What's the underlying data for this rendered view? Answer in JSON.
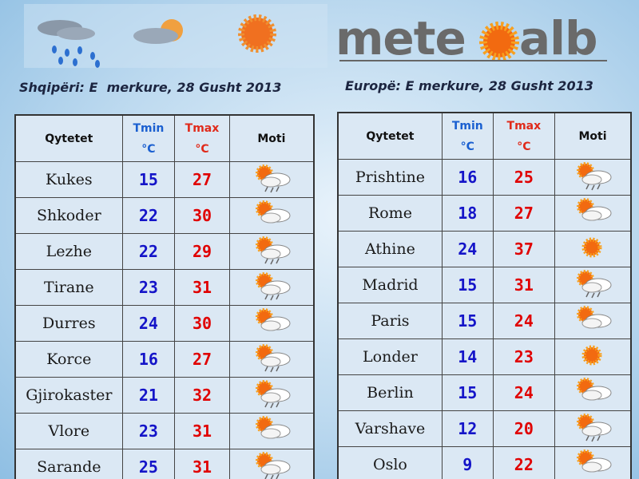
{
  "logo": {
    "left": "mete",
    "right": "alb"
  },
  "left": {
    "title": "Shqipëri: E  merkure, 28 Gusht 2013",
    "header": {
      "city": "Qytetet",
      "tmin": "Tmin",
      "tmax": "Tmax",
      "unit": "°C",
      "moti": "Moti"
    },
    "rows": [
      {
        "city": "Kukes",
        "tmin": 15,
        "tmax": 27,
        "icon": "rain"
      },
      {
        "city": "Shkoder",
        "tmin": 22,
        "tmax": 30,
        "icon": "cloud"
      },
      {
        "city": "Lezhe",
        "tmin": 22,
        "tmax": 29,
        "icon": "rain"
      },
      {
        "city": "Tirane",
        "tmin": 23,
        "tmax": 31,
        "icon": "rain"
      },
      {
        "city": "Durres",
        "tmin": 24,
        "tmax": 30,
        "icon": "cloud"
      },
      {
        "city": "Korce",
        "tmin": 16,
        "tmax": 27,
        "icon": "rain"
      },
      {
        "city": "Gjirokaster",
        "tmin": 21,
        "tmax": 32,
        "icon": "rain"
      },
      {
        "city": "Vlore",
        "tmin": 23,
        "tmax": 31,
        "icon": "cloud"
      },
      {
        "city": "Sarande",
        "tmin": 25,
        "tmax": 31,
        "icon": "rain"
      }
    ]
  },
  "right": {
    "title": "Europë: E merkure, 28 Gusht 2013",
    "header": {
      "city": "Qytetet",
      "tmin": "Tmin",
      "tmax": "Tmax",
      "unit": "°C",
      "moti": "Moti"
    },
    "rows": [
      {
        "city": "Prishtine",
        "tmin": 16,
        "tmax": 25,
        "icon": "rain"
      },
      {
        "city": "Rome",
        "tmin": 18,
        "tmax": 27,
        "icon": "cloud"
      },
      {
        "city": "Athine",
        "tmin": 24,
        "tmax": 37,
        "icon": "sun"
      },
      {
        "city": "Madrid",
        "tmin": 15,
        "tmax": 31,
        "icon": "rain"
      },
      {
        "city": "Paris",
        "tmin": 15,
        "tmax": 24,
        "icon": "cloud"
      },
      {
        "city": "Londer",
        "tmin": 14,
        "tmax": 23,
        "icon": "sun"
      },
      {
        "city": "Berlin",
        "tmin": 15,
        "tmax": 24,
        "icon": "cloud"
      },
      {
        "city": "Varshave",
        "tmin": 12,
        "tmax": 20,
        "icon": "rain"
      },
      {
        "city": "Oslo",
        "tmin": 9,
        "tmax": 22,
        "icon": "cloud"
      }
    ]
  }
}
